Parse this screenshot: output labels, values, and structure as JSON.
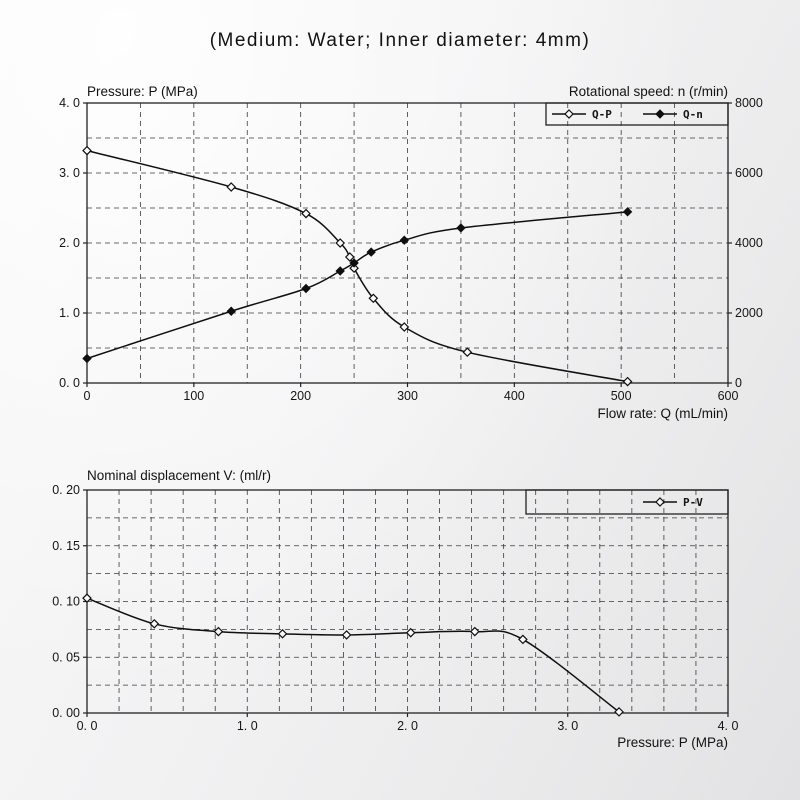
{
  "page_title": "(Medium: Water; Inner diameter: 4mm)",
  "chart_data": [
    {
      "type": "line",
      "ylabel_left": "Pressure: P (MPa)",
      "ylabel_right": "Rotational speed: n (r/min)",
      "xlabel": "Flow rate: Q (mL/min)",
      "xlim": [
        0,
        600
      ],
      "ylim_left": [
        0,
        4
      ],
      "ylim_right": [
        0,
        8000
      ],
      "xticks": {
        "values": [
          0,
          100,
          200,
          300,
          400,
          500,
          600
        ],
        "labels": [
          "0",
          "100",
          "200",
          "300",
          "400",
          "500",
          "600"
        ]
      },
      "yticks_left": {
        "values": [
          0,
          1,
          2,
          3,
          4
        ],
        "labels": [
          "0. 0",
          "1. 0",
          "2. 0",
          "3. 0",
          "4. 0"
        ]
      },
      "yticks_right": {
        "values": [
          0,
          2000,
          4000,
          6000,
          8000
        ],
        "labels": [
          "0",
          "2000",
          "4000",
          "6000",
          "8000"
        ]
      },
      "grid": {
        "x_step": 50,
        "y_step": 0.5,
        "style": "dashed"
      },
      "legend": {
        "position": "top-right-inside",
        "entries": [
          "Q-P",
          "Q-n"
        ]
      },
      "series": [
        {
          "name": "Q-P",
          "axis": "left",
          "marker": "open-diamond",
          "x": [
            0,
            135,
            205,
            237,
            246,
            250,
            268,
            297,
            356,
            506
          ],
          "y": [
            3.32,
            2.8,
            2.42,
            2.0,
            1.8,
            1.64,
            1.21,
            0.8,
            0.44,
            0.02
          ]
        },
        {
          "name": "Q-n",
          "axis": "right",
          "marker": "filled-diamond",
          "x": [
            0,
            135,
            205,
            237,
            250,
            266,
            297,
            350,
            506
          ],
          "y": [
            700,
            2050,
            2700,
            3200,
            3430,
            3740,
            4080,
            4430,
            4890
          ]
        }
      ]
    },
    {
      "type": "line",
      "ylabel_left": "Nominal displacement V: (ml/r)",
      "xlabel": "Pressure: P (MPa)",
      "xlim": [
        0,
        4
      ],
      "ylim_left": [
        0,
        0.2
      ],
      "xticks": {
        "values": [
          0,
          1,
          2,
          3,
          4
        ],
        "labels": [
          "0. 0",
          "1. 0",
          "2. 0",
          "3. 0",
          "4. 0"
        ]
      },
      "yticks_left": {
        "values": [
          0,
          0.05,
          0.1,
          0.15,
          0.2
        ],
        "labels": [
          "0. 00",
          "0. 05",
          "0. 10",
          "0. 15",
          "0. 20"
        ]
      },
      "grid": {
        "x_step": 0.2,
        "y_step": 0.025,
        "style": "dashed"
      },
      "legend": {
        "position": "top-right-inside",
        "entries": [
          "P-V"
        ]
      },
      "series": [
        {
          "name": "P-V",
          "axis": "left",
          "marker": "open-diamond",
          "x": [
            0,
            0.42,
            0.82,
            1.22,
            1.62,
            2.02,
            2.42,
            2.72,
            3.32
          ],
          "y": [
            0.103,
            0.08,
            0.073,
            0.071,
            0.07,
            0.072,
            0.073,
            0.066,
            0.001
          ]
        }
      ]
    }
  ]
}
